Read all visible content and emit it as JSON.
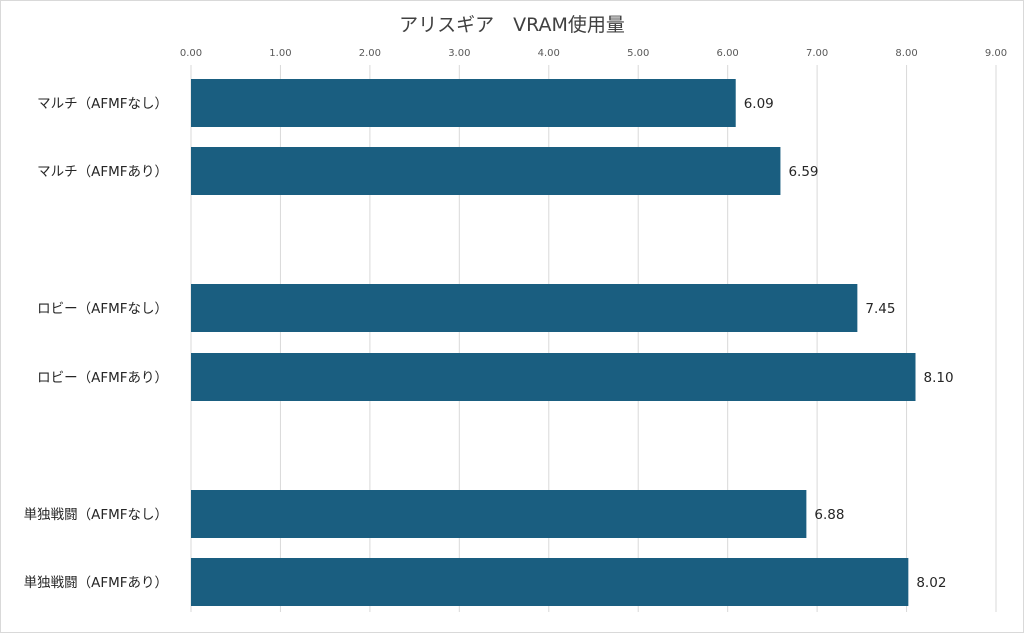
{
  "chart_data": {
    "type": "bar",
    "orientation": "horizontal",
    "title": "アリスギア　VRAM使用量",
    "xlabel": "",
    "ylabel": "",
    "xlim": [
      0,
      9
    ],
    "x_ticks": [
      "0.00",
      "1.00",
      "2.00",
      "3.00",
      "4.00",
      "5.00",
      "6.00",
      "7.00",
      "8.00",
      "9.00"
    ],
    "grid": true,
    "legend": "none",
    "bar_color": "#1a5e80",
    "categories": [
      "マルチ（AFMFなし）",
      "マルチ（AFMFあり）",
      "ロビー（AFMFなし）",
      "ロビー（AFMFあり）",
      "単独戦闘（AFMFなし）",
      "単独戦闘（AFMFあり）"
    ],
    "values": [
      6.09,
      6.59,
      7.45,
      8.1,
      6.88,
      8.02
    ],
    "value_labels": [
      "6.09",
      "6.59",
      "7.45",
      "8.10",
      "6.88",
      "8.02"
    ]
  }
}
